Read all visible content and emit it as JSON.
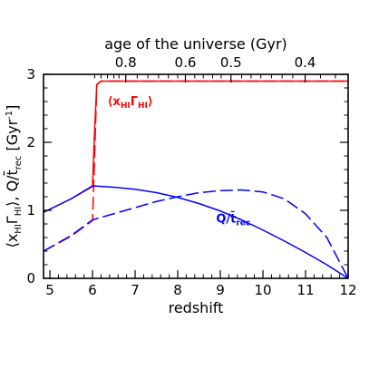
{
  "chart_data": {
    "type": "line",
    "xlabel": "redshift",
    "x2label": "age of the universe (Gyr)",
    "ylabel_parts": [
      "⟨x",
      "HI",
      "Γ",
      "HI",
      "⟩,  Q/",
      "t̄",
      "rec",
      "  [Gyr",
      "-1",
      "]"
    ],
    "xlim": [
      4.85,
      12
    ],
    "ylim": [
      0,
      3
    ],
    "x_ticks": [
      5,
      6,
      7,
      8,
      9,
      10,
      11,
      12
    ],
    "y_ticks": [
      0,
      1,
      2,
      3
    ],
    "top_ticks": [
      {
        "label": "0.8",
        "z": 6.78
      },
      {
        "label": "0.6",
        "z": 8.18
      },
      {
        "label": "0.5",
        "z": 9.25
      },
      {
        "label": "0.4",
        "z": 10.99
      }
    ],
    "annotations": {
      "red": {
        "parts": [
          "⟨x",
          "HI",
          "Γ",
          "HI",
          "⟩"
        ],
        "color": "#ff0000"
      },
      "blue": {
        "parts": [
          "Q/",
          "t̄",
          "rec"
        ],
        "color": "#0000ff"
      }
    },
    "series": [
      {
        "color": "#ff0000",
        "style": "solid",
        "x": [
          4.85,
          5.5,
          6.0,
          6.05,
          6.1,
          6.2,
          7,
          8,
          9,
          10,
          11,
          12
        ],
        "y": [
          0.97,
          1.17,
          1.35,
          2.2,
          2.85,
          2.9,
          2.9,
          2.9,
          2.9,
          2.9,
          2.9,
          2.9
        ]
      },
      {
        "color": "#ff0000",
        "style": "dashed",
        "x": [
          4.85,
          5.5,
          6.0,
          6.05,
          6.1,
          6.2,
          7,
          8,
          9,
          10,
          11,
          12
        ],
        "y": [
          0.4,
          0.62,
          0.85,
          1.8,
          2.85,
          2.9,
          2.9,
          2.9,
          2.9,
          2.9,
          2.9,
          2.9
        ]
      },
      {
        "color": "#0000ff",
        "style": "solid",
        "x": [
          4.85,
          5.5,
          6.0,
          6.5,
          7,
          7.5,
          8,
          8.5,
          9,
          9.5,
          10,
          10.5,
          11,
          11.5,
          12
        ],
        "y": [
          0.97,
          1.17,
          1.36,
          1.34,
          1.31,
          1.26,
          1.19,
          1.1,
          0.99,
          0.86,
          0.71,
          0.55,
          0.38,
          0.2,
          0.0
        ]
      },
      {
        "color": "#0000ff",
        "style": "dashed",
        "x": [
          4.85,
          5.5,
          6.0,
          6.5,
          7,
          7.5,
          8,
          8.5,
          9,
          9.5,
          10,
          10.5,
          11,
          11.5,
          12
        ],
        "y": [
          0.4,
          0.63,
          0.86,
          0.95,
          1.04,
          1.13,
          1.2,
          1.26,
          1.29,
          1.3,
          1.27,
          1.17,
          0.95,
          0.6,
          0.0
        ]
      }
    ]
  }
}
